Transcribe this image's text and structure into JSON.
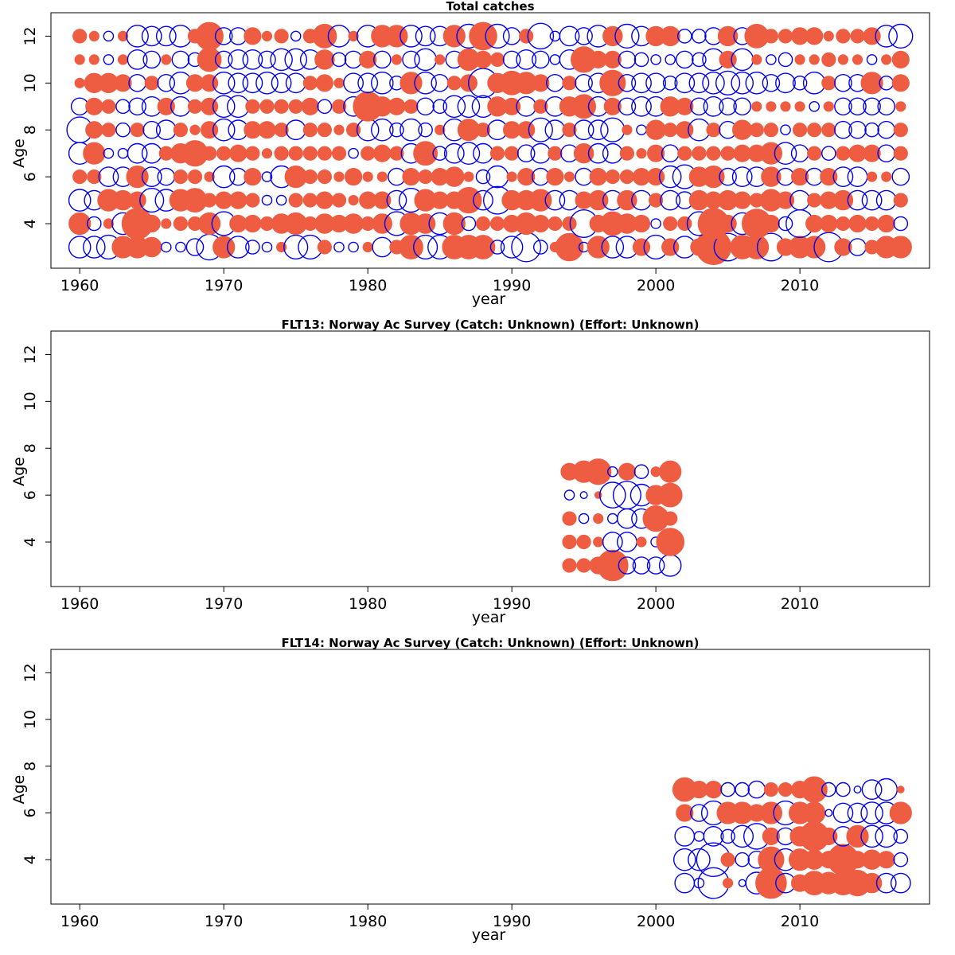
{
  "colors": {
    "positive": "#EE5C42",
    "negative": "#0000EE",
    "frame": "#000000"
  },
  "chart_data": [
    {
      "type": "scatter",
      "subtype": "bubble-residuals",
      "title": "Total catches",
      "xlabel": "year",
      "ylabel": "Age",
      "xlim": [
        1958,
        2019
      ],
      "ylim": [
        2.1,
        13
      ],
      "x_ticks": [
        1960,
        1970,
        1980,
        1990,
        2000,
        2010
      ],
      "y_ticks": [
        4,
        6,
        8,
        10,
        12
      ],
      "years": [
        1960,
        1961,
        1962,
        1963,
        1964,
        1965,
        1966,
        1967,
        1968,
        1969,
        1970,
        1971,
        1972,
        1973,
        1974,
        1975,
        1976,
        1977,
        1978,
        1979,
        1980,
        1981,
        1982,
        1983,
        1984,
        1985,
        1986,
        1987,
        1988,
        1989,
        1990,
        1991,
        1992,
        1993,
        1994,
        1995,
        1996,
        1997,
        1998,
        1999,
        2000,
        2001,
        2002,
        2003,
        2004,
        2005,
        2006,
        2007,
        2008,
        2009,
        2010,
        2011,
        2012,
        2013,
        2014,
        2015,
        2016,
        2017
      ],
      "ages": [
        3,
        4,
        5,
        6,
        7,
        8,
        9,
        10,
        11,
        12
      ],
      "residuals": [
        [
          -0.5,
          -0.5,
          -0.6,
          0.5,
          0.5,
          0.4,
          -0.1,
          -0.1,
          -0.3,
          -0.7,
          0.5,
          -0.5,
          -0.2,
          -0.1,
          0.1,
          -0.6,
          -0.6,
          0.2,
          -0.1,
          -0.1,
          0.1,
          -0.4,
          0.2,
          0.6,
          -0.6,
          -0.6,
          0.6,
          0.6,
          0.6,
          -0.2,
          -0.5,
          -0.9,
          -0.2,
          0.1,
          0.8,
          -0.1,
          0.5,
          -0.5,
          -0.5,
          0.3,
          -0.6,
          0.3,
          -0.5,
          0.3,
          1.3,
          -0.8,
          0.6,
          0.6,
          -0.8,
          0.3,
          0.5,
          0.5,
          -0.9,
          0.3,
          -0.3,
          0.2,
          0.5,
          0.5
        ],
        [
          0.5,
          -0.2,
          0.1,
          -0.5,
          1.0,
          0.3,
          0.1,
          0.2,
          0.2,
          0.5,
          -0.6,
          0.3,
          0.3,
          0.2,
          0.4,
          0.5,
          0.2,
          0.4,
          0.3,
          0.4,
          0.2,
          0.4,
          -0.6,
          0.5,
          0.4,
          -0.5,
          0.5,
          -0.2,
          0.2,
          0.2,
          0.3,
          0.5,
          0.3,
          0.2,
          0.2,
          -0.8,
          0.3,
          0.6,
          0.4,
          0.3,
          -0.1,
          0.2,
          0.2,
          -0.6,
          1.0,
          0.3,
          -0.5,
          0.9,
          0.3,
          -0.2,
          -0.8,
          0.3,
          0.3,
          0.2,
          0.3,
          0.2,
          0.3,
          -0.2
        ],
        [
          -0.5,
          -0.4,
          0.5,
          0.4,
          0.3,
          -0.6,
          -0.5,
          0.5,
          0.6,
          0.2,
          0.3,
          0.3,
          0.2,
          -0.1,
          -0.1,
          0.2,
          0.2,
          0.3,
          0.2,
          0.1,
          0.3,
          0.3,
          -0.4,
          -0.6,
          0.5,
          0.3,
          0.3,
          0.7,
          -0.4,
          -0.8,
          0.4,
          0.4,
          0.5,
          -0.4,
          -0.4,
          0.3,
          0.4,
          -0.4,
          0.4,
          -0.4,
          0.2,
          -0.4,
          -0.3,
          0.4,
          0.3,
          0.4,
          0.3,
          0.2,
          0.5,
          0.3,
          -0.4,
          0.2,
          0.3,
          0.4,
          -0.4,
          -0.4,
          -0.4,
          0.2
        ],
        [
          0.2,
          0.2,
          -0.4,
          -0.4,
          0.5,
          -0.4,
          -0.3,
          0.2,
          0.2,
          0.1,
          -0.5,
          -0.3,
          0.3,
          -0.1,
          -0.5,
          0.5,
          0.2,
          0.2,
          0.1,
          0.3,
          0.1,
          0.1,
          -0.3,
          0.3,
          0.2,
          0.3,
          0.4,
          0.1,
          -0.2,
          -0.5,
          0.1,
          0.3,
          -0.3,
          0.3,
          0.1,
          -0.3,
          0.3,
          0.2,
          0.2,
          0.3,
          0.3,
          -0.5,
          -0.6,
          0.4,
          0.5,
          -0.3,
          -0.4,
          -0.4,
          0.4,
          -0.3,
          0.3,
          -0.3,
          0.3,
          -0.4,
          -0.4,
          0.1,
          0.1,
          -0.3
        ],
        [
          -0.5,
          0.5,
          -0.1,
          -0.1,
          -0.4,
          -0.4,
          0.2,
          0.4,
          0.7,
          0.2,
          0.2,
          0.3,
          0.2,
          0.1,
          0.2,
          0.2,
          0.2,
          0.2,
          0.2,
          -0.1,
          0.2,
          0.3,
          0.2,
          -0.4,
          0.6,
          -0.2,
          -0.4,
          -0.5,
          -0.4,
          0.2,
          0.2,
          -0.3,
          -0.4,
          0.2,
          -0.3,
          0.4,
          -0.4,
          -0.4,
          0.2,
          0.1,
          0.3,
          -0.3,
          0.2,
          0.2,
          0.2,
          0.2,
          0.3,
          0.3,
          0.5,
          -0.5,
          -0.3,
          0.2,
          -0.2,
          0.2,
          0.3,
          0.3,
          -0.3,
          0.2
        ],
        [
          -0.7,
          0.3,
          0.2,
          -0.2,
          0.2,
          -0.3,
          -0.4,
          0.2,
          0.1,
          0.3,
          -0.5,
          -0.4,
          0.3,
          0.3,
          0.2,
          -0.4,
          0.2,
          0.2,
          0.1,
          0.2,
          -0.5,
          -0.5,
          -0.2,
          -0.5,
          -0.2,
          0.1,
          -0.5,
          0.5,
          0.2,
          -0.4,
          0.3,
          0.3,
          -0.6,
          -0.4,
          0.2,
          -0.4,
          -0.4,
          -0.6,
          0.1,
          -0.1,
          0.4,
          0.2,
          0.3,
          -0.5,
          0.2,
          -0.3,
          0.4,
          0.2,
          0.2,
          -0.1,
          0.2,
          0.2,
          0.2,
          -0.3,
          -0.3,
          -0.2,
          -0.3,
          0.2
        ],
        [
          -0.3,
          0.3,
          0.2,
          -0.2,
          -0.3,
          -0.4,
          0.3,
          -0.4,
          0.2,
          0.3,
          -0.5,
          -0.5,
          0.2,
          0.2,
          0.2,
          0.2,
          0.3,
          -0.2,
          0.2,
          -0.4,
          0.9,
          0.4,
          0.3,
          0.2,
          -0.3,
          -0.2,
          -0.5,
          -0.5,
          -0.5,
          0.4,
          0.3,
          -0.4,
          0.2,
          -0.4,
          0.4,
          0.6,
          -0.4,
          0.3,
          -0.3,
          -0.4,
          -0.4,
          0.4,
          0.3,
          -0.3,
          -0.4,
          -0.3,
          -0.3,
          0.1,
          0.1,
          0.1,
          0.1,
          -0.1,
          0.1,
          -0.3,
          -0.3,
          -0.3,
          -0.3,
          0.1
        ],
        [
          0.1,
          0.4,
          0.4,
          0.3,
          -0.3,
          0.2,
          -0.3,
          -0.5,
          0.3,
          0.3,
          -0.5,
          -0.4,
          -0.4,
          -0.5,
          -0.4,
          -0.4,
          0.2,
          0.3,
          0.1,
          -0.4,
          -0.4,
          -0.5,
          -0.2,
          0.5,
          -0.5,
          -0.3,
          0.2,
          0.3,
          -0.9,
          0.4,
          0.6,
          0.5,
          0.3,
          -0.3,
          0.2,
          -0.3,
          -0.4,
          0.7,
          -0.3,
          -0.4,
          -0.4,
          -0.2,
          -0.4,
          -0.4,
          -0.5,
          -0.6,
          -0.5,
          -0.5,
          -0.3,
          -0.4,
          -0.2,
          -0.5,
          0.2,
          -0.3,
          -0.3,
          0.5,
          -0.2,
          0.3
        ],
        [
          0.1,
          0.1,
          -0.1,
          0.1,
          -0.4,
          -0.3,
          0.1,
          -0.3,
          -0.2,
          0.6,
          -0.3,
          -0.4,
          -0.4,
          -0.3,
          -0.5,
          -0.5,
          -0.4,
          0.4,
          -0.2,
          -0.3,
          0.3,
          -0.3,
          0.1,
          -0.3,
          -0.5,
          0.1,
          -0.3,
          0.5,
          0.3,
          0.2,
          -0.3,
          -0.4,
          -0.3,
          -0.1,
          -0.4,
          0.7,
          0.3,
          0.3,
          -0.3,
          -0.2,
          -0.1,
          -0.1,
          -0.3,
          -0.2,
          -0.5,
          0.3,
          -0.5,
          0.1,
          -0.1,
          -0.2,
          0.1,
          0.1,
          0.2,
          0.1,
          0.1,
          -0.1,
          0.1,
          0.3
        ],
        [
          0.2,
          0.1,
          -0.1,
          0.1,
          -0.5,
          -0.4,
          -0.4,
          -0.5,
          0.2,
          0.8,
          -0.3,
          -0.3,
          0.3,
          0.1,
          0.2,
          -0.1,
          0.2,
          0.6,
          -0.5,
          0.1,
          -0.5,
          0.5,
          0.5,
          -0.5,
          -0.4,
          -0.4,
          0.5,
          -0.6,
          0.8,
          -0.6,
          -0.3,
          0.2,
          -0.7,
          -0.1,
          -0.4,
          -0.3,
          -0.5,
          0.4,
          -0.6,
          -0.4,
          0.4,
          0.4,
          -0.2,
          -0.2,
          -0.3,
          0.4,
          -0.3,
          0.6,
          0.2,
          0.2,
          0.3,
          0.3,
          0.1,
          0.2,
          0.2,
          0.3,
          -0.5,
          -0.6
        ]
      ]
    },
    {
      "type": "scatter",
      "subtype": "bubble-residuals",
      "title": "FLT13: Norway Ac Survey (Catch: Unknown) (Effort: Unknown)",
      "xlabel": "year",
      "ylabel": "Age",
      "xlim": [
        1958,
        2019
      ],
      "ylim": [
        2.1,
        13
      ],
      "x_ticks": [
        1960,
        1970,
        1980,
        1990,
        2000,
        2010
      ],
      "y_ticks": [
        4,
        6,
        8,
        10,
        12
      ],
      "years": [
        1994,
        1995,
        1996,
        1997,
        1998,
        1999,
        2000,
        2001
      ],
      "ages": [
        3,
        4,
        5,
        6,
        7
      ],
      "residuals": [
        [
          0.2,
          0.2,
          0.3,
          1.0,
          -0.3,
          -0.3,
          -0.3,
          -0.5
        ],
        [
          0.2,
          0.2,
          0.1,
          -0.4,
          -0.4,
          0.1,
          -0.1,
          0.8
        ],
        [
          0.2,
          -0.1,
          0.1,
          -0.1,
          -0.4,
          -0.4,
          0.7,
          0.2
        ],
        [
          -0.1,
          -0.05,
          0.05,
          -0.7,
          -0.8,
          -0.5,
          0.4,
          0.6
        ],
        [
          0.3,
          0.5,
          0.7,
          -0.1,
          0.3,
          -0.2,
          0.1,
          0.5
        ]
      ]
    },
    {
      "type": "scatter",
      "subtype": "bubble-residuals",
      "title": "FLT14: Norway Ac Survey (Catch: Unknown) (Effort: Unknown)",
      "xlabel": "year",
      "ylabel": "Age",
      "xlim": [
        1958,
        2019
      ],
      "ylim": [
        2.1,
        13
      ],
      "x_ticks": [
        1960,
        1970,
        1980,
        1990,
        2000,
        2010
      ],
      "y_ticks": [
        4,
        6,
        8,
        10,
        12
      ],
      "years": [
        2002,
        2003,
        2004,
        2005,
        2006,
        2007,
        2008,
        2009,
        2010,
        2011,
        2012,
        2013,
        2014,
        2015,
        2016,
        2017
      ],
      "ages": [
        3,
        4,
        5,
        6,
        7
      ],
      "residuals": [
        [
          -0.4,
          -0.1,
          -1.0,
          0.1,
          -0.05,
          -0.5,
          1.0,
          -0.4,
          0.3,
          0.6,
          0.5,
          0.6,
          0.7,
          0.4,
          -0.4,
          -0.4
        ],
        [
          -0.5,
          -0.5,
          -1.2,
          0.2,
          -0.2,
          -0.3,
          0.7,
          -0.5,
          0.5,
          0.4,
          0.3,
          1.0,
          0.3,
          0.4,
          0.3,
          -0.2
        ],
        [
          -0.4,
          -0.1,
          -0.4,
          -0.2,
          -0.5,
          -0.7,
          0.3,
          -0.3,
          0.4,
          0.9,
          0.3,
          -0.4,
          0.5,
          -0.5,
          -0.5,
          -0.2
        ],
        [
          0.3,
          -0.3,
          -0.6,
          0.5,
          0.5,
          0.3,
          0.5,
          -0.6,
          0.5,
          0.5,
          -0.05,
          -0.4,
          -0.4,
          -0.5,
          -0.5,
          0.5
        ],
        [
          0.6,
          0.3,
          0.3,
          -0.2,
          -0.2,
          -0.3,
          0.2,
          0.2,
          0.3,
          0.7,
          -0.2,
          -0.2,
          -0.05,
          -0.4,
          -0.5,
          0.05
        ]
      ]
    }
  ]
}
